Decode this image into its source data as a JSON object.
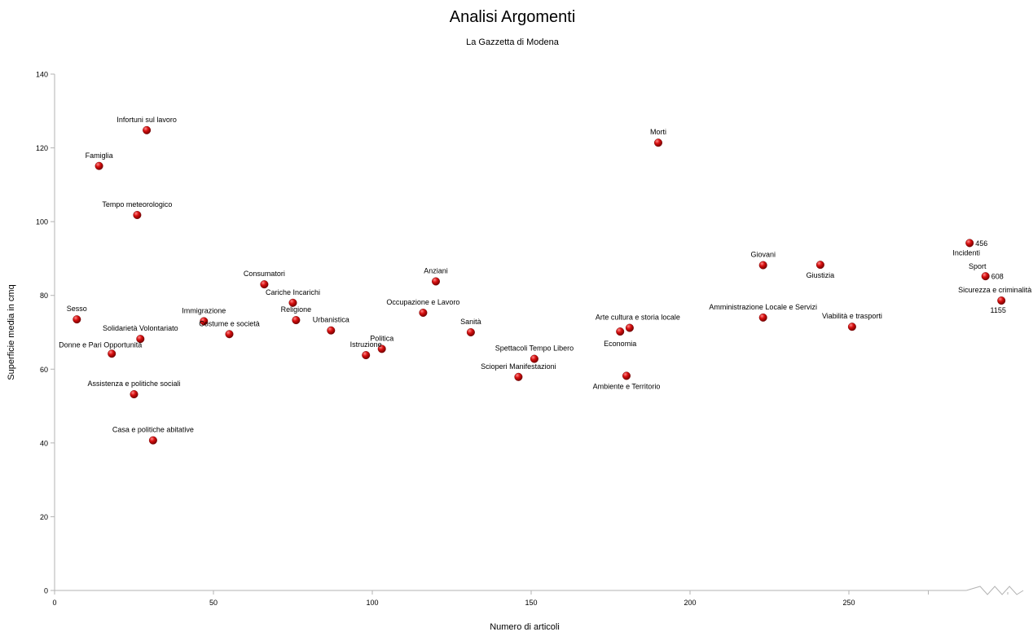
{
  "title": "Analisi Argomenti",
  "subtitle": "La Gazzetta di Modena",
  "chart_data": {
    "type": "scatter",
    "title": "Analisi Argomenti",
    "subtitle": "La Gazzetta di Modena",
    "xlabel": "Numero di articoli",
    "ylabel": "Superficie media in cmq",
    "xlim": [
      0,
      300
    ],
    "ylim": [
      0,
      140
    ],
    "x_ticks": [
      "0",
      "50",
      "100",
      "150",
      "200",
      "250"
    ],
    "y_ticks": [
      "0",
      "20",
      "40",
      "60",
      "80",
      "100",
      "120",
      "140"
    ],
    "axis_break": "x-axis between 275 and 300",
    "grid": false,
    "legend": "none",
    "point_color": "#cc0000",
    "points": [
      {
        "label": "Infortuni sul lavoro",
        "x": 29,
        "y": 124.8
      },
      {
        "label": "Famiglia",
        "x": 14,
        "y": 115.1
      },
      {
        "label": "Tempo meteorologico",
        "x": 26,
        "y": 101.8
      },
      {
        "label": "Sesso",
        "x": 7,
        "y": 73.5
      },
      {
        "label": "Solidarietà Volontariato",
        "x": 27,
        "y": 68.2
      },
      {
        "label": "Donne e Pari Opportunità",
        "x": 18,
        "y": 64.2
      },
      {
        "label": "Assistenza e politiche sociali",
        "x": 25,
        "y": 53.2
      },
      {
        "label": "Casa e politiche abitative",
        "x": 31,
        "y": 40.7
      },
      {
        "label": "Immigrazione",
        "x": 47,
        "y": 73
      },
      {
        "label": "Costume e società",
        "x": 55,
        "y": 69.5
      },
      {
        "label": "Consumatori",
        "x": 66,
        "y": 83
      },
      {
        "label": "Cariche Incarichi",
        "x": 75,
        "y": 78
      },
      {
        "label": "Religione",
        "x": 76,
        "y": 73.3
      },
      {
        "label": "Urbanistica",
        "x": 87,
        "y": 70.5
      },
      {
        "label": "Istruzione",
        "x": 98,
        "y": 63.8
      },
      {
        "label": "Politica",
        "x": 103,
        "y": 65.5
      },
      {
        "label": "Anziani",
        "x": 120,
        "y": 83.8
      },
      {
        "label": "Occupazione e Lavoro",
        "x": 116,
        "y": 75.3
      },
      {
        "label": "Sanità",
        "x": 131,
        "y": 70
      },
      {
        "label": "Spettacoli Tempo Libero",
        "x": 151,
        "y": 62.8
      },
      {
        "label": "Scioperi Manifestazioni",
        "x": 146,
        "y": 57.9
      },
      {
        "label": "Morti",
        "x": 190,
        "y": 121.4
      },
      {
        "label": "Arte cultura e storia locale",
        "x": 181,
        "y": 71.2
      },
      {
        "label": "Economia",
        "x": 178,
        "y": 70.2
      },
      {
        "label": "Ambiente e Territorio",
        "x": 180,
        "y": 58.2
      },
      {
        "label": "Giovani",
        "x": 223,
        "y": 88.2
      },
      {
        "label": "Amministrazione Locale e Servizi",
        "x": 223,
        "y": 74
      },
      {
        "label": "Giustizia",
        "x": 241,
        "y": 88.3
      },
      {
        "label": "Viabilità e trasporti",
        "x": 251,
        "y": 71.5
      },
      {
        "label": "Incidenti",
        "x": 288,
        "y": 94.2,
        "value_label": "456"
      },
      {
        "label": "Sport",
        "x": 293,
        "y": 85.2,
        "value_label": "608"
      },
      {
        "label": "Sicurezza e criminalità",
        "x": 298,
        "y": 78.6,
        "value_label": "1155"
      }
    ]
  }
}
